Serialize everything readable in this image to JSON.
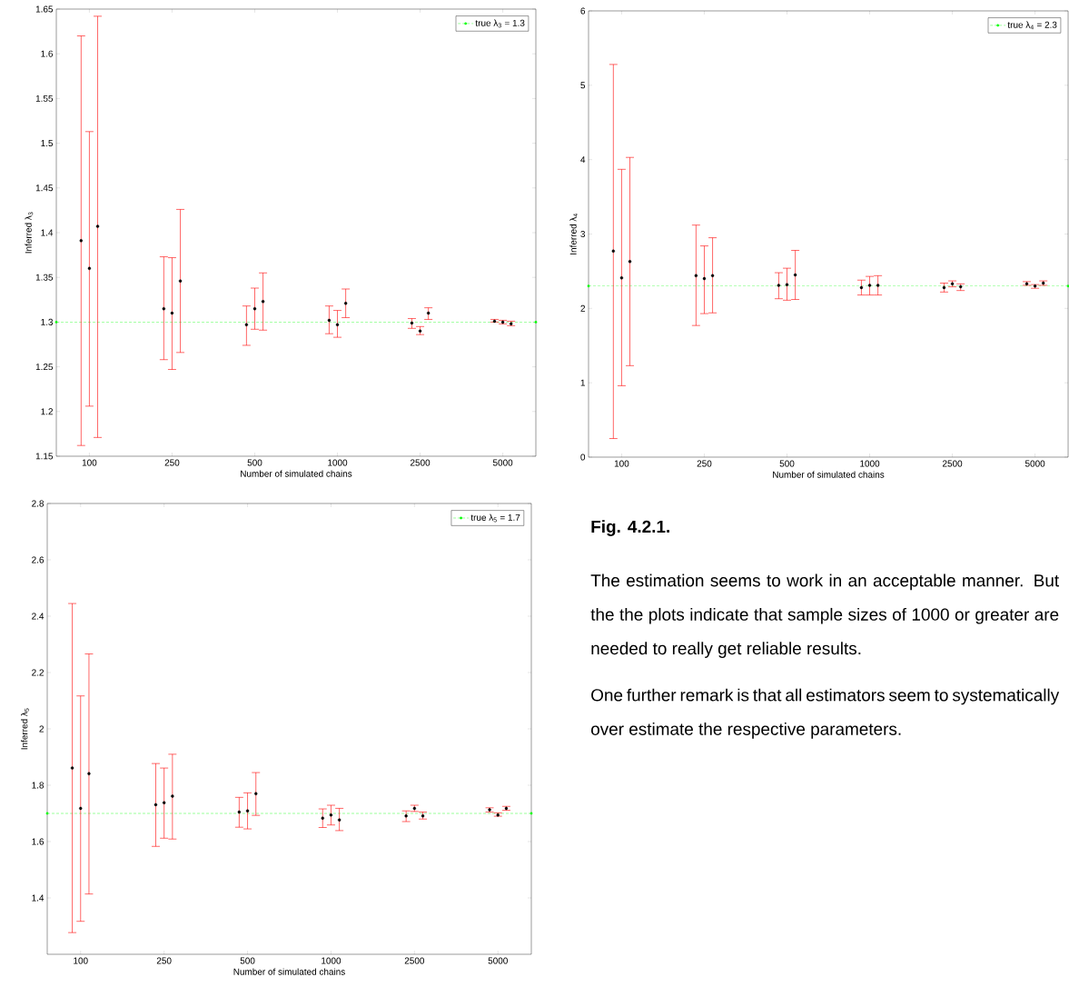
{
  "chart_data": [
    {
      "type": "scatter",
      "xlabel": "Number of simulated chains",
      "ylabel": "Inferred λ$_{3}$",
      "categories": [
        "100",
        "250",
        "500",
        "1000",
        "2500",
        "5000"
      ],
      "ylim": [
        1.15,
        1.65
      ],
      "yticks": [
        1.15,
        1.2,
        1.25,
        1.3,
        1.35,
        1.4,
        1.45,
        1.5,
        1.55,
        1.6,
        1.65
      ],
      "marker": "circle",
      "legend": "top right",
      "ref_lines": [
        {
          "axis": "y",
          "value": 1.3,
          "label": "true λ$_{3}$ = 1.3",
          "color": "#00ff00",
          "line_style": "dashed"
        }
      ],
      "series": [
        {
          "color": "#000000",
          "values": [
            1.391,
            1.315,
            1.297,
            1.302,
            1.299,
            1.301
          ],
          "errors": [
            [
              1.162,
              1.62
            ],
            [
              1.258,
              1.373
            ],
            [
              1.274,
              1.318
            ],
            [
              1.287,
              1.318
            ],
            [
              1.293,
              1.304
            ],
            [
              1.3,
              1.303
            ]
          ]
        },
        {
          "color": "#000000",
          "values": [
            1.36,
            1.31,
            1.315,
            1.297,
            1.29,
            1.3
          ],
          "errors": [
            [
              1.206,
              1.513
            ],
            [
              1.247,
              1.372
            ],
            [
              1.292,
              1.338
            ],
            [
              1.283,
              1.313
            ],
            [
              1.286,
              1.295
            ],
            [
              1.298,
              1.302
            ]
          ]
        },
        {
          "color": "#000000",
          "values": [
            1.407,
            1.346,
            1.323,
            1.321,
            1.31,
            1.298
          ],
          "errors": [
            [
              1.171,
              1.642
            ],
            [
              1.266,
              1.426
            ],
            [
              1.291,
              1.355
            ],
            [
              1.305,
              1.337
            ],
            [
              1.303,
              1.316
            ],
            [
              1.296,
              1.301
            ]
          ]
        }
      ]
    },
    {
      "type": "scatter",
      "xlabel": "Number of simulated chains",
      "ylabel": "Inferred λ$_{4}$",
      "categories": [
        "100",
        "250",
        "500",
        "1000",
        "2500",
        "5000"
      ],
      "ylim": [
        0,
        6
      ],
      "yticks": [
        0,
        1,
        2,
        3,
        4,
        5,
        6
      ],
      "marker": "circle",
      "legend": "top right",
      "ref_lines": [
        {
          "axis": "y",
          "value": 2.3,
          "label": "true λ$_{4}$ = 2.3",
          "color": "#00ff00",
          "line_style": "dashed"
        }
      ],
      "series": [
        {
          "color": "#000000",
          "values": [
            2.77,
            2.44,
            2.31,
            2.28,
            2.28,
            2.33
          ],
          "errors": [
            [
              0.25,
              5.28
            ],
            [
              1.77,
              3.12
            ],
            [
              2.13,
              2.48
            ],
            [
              2.18,
              2.38
            ],
            [
              2.22,
              2.34
            ],
            [
              2.31,
              2.36
            ]
          ]
        },
        {
          "color": "#000000",
          "values": [
            2.41,
            2.4,
            2.32,
            2.31,
            2.33,
            2.3
          ],
          "errors": [
            [
              0.96,
              3.87
            ],
            [
              1.93,
              2.84
            ],
            [
              2.11,
              2.54
            ],
            [
              2.18,
              2.43
            ],
            [
              2.29,
              2.37
            ],
            [
              2.27,
              2.32
            ]
          ]
        },
        {
          "color": "#000000",
          "values": [
            2.63,
            2.44,
            2.45,
            2.31,
            2.29,
            2.34
          ],
          "errors": [
            [
              1.23,
              4.03
            ],
            [
              1.94,
              2.95
            ],
            [
              2.12,
              2.78
            ],
            [
              2.18,
              2.44
            ],
            [
              2.24,
              2.33
            ],
            [
              2.31,
              2.37
            ]
          ]
        }
      ]
    },
    {
      "type": "scatter",
      "xlabel": "Number of simulated chains",
      "ylabel": "Inferred λ$_{5}$",
      "categories": [
        "100",
        "250",
        "500",
        "1000",
        "2500",
        "5000"
      ],
      "ylim": [
        1.2,
        2.8
      ],
      "yticks": [
        1.4,
        1.6,
        1.8,
        2,
        2.2,
        2.4,
        2.6,
        2.8
      ],
      "marker": "circle",
      "legend": "top right",
      "ref_lines": [
        {
          "axis": "y",
          "value": 1.7,
          "label": "true λ$_{5}$ = 1.7",
          "color": "#00ff00",
          "line_style": "dashed"
        }
      ],
      "series": [
        {
          "color": "#000000",
          "values": [
            1.861,
            1.731,
            1.705,
            1.683,
            1.691,
            1.713
          ],
          "errors": [
            [
              1.277,
              2.445
            ],
            [
              1.583,
              1.877
            ],
            [
              1.651,
              1.757
            ],
            [
              1.65,
              1.716
            ],
            [
              1.671,
              1.709
            ],
            [
              1.705,
              1.72
            ]
          ]
        },
        {
          "color": "#000000",
          "values": [
            1.718,
            1.738,
            1.709,
            1.694,
            1.718,
            1.694
          ],
          "errors": [
            [
              1.317,
              2.117
            ],
            [
              1.612,
              1.861
            ],
            [
              1.645,
              1.773
            ],
            [
              1.659,
              1.729
            ],
            [
              1.707,
              1.729
            ],
            [
              1.69,
              1.702
            ]
          ]
        },
        {
          "color": "#000000",
          "values": [
            1.841,
            1.761,
            1.77,
            1.677,
            1.691,
            1.718
          ],
          "errors": [
            [
              1.414,
              2.266
            ],
            [
              1.609,
              1.91
            ],
            [
              1.693,
              1.845
            ],
            [
              1.639,
              1.718
            ],
            [
              1.68,
              1.705
            ],
            [
              1.711,
              1.725
            ]
          ]
        }
      ]
    },
    {
      "type": "other",
      "title": "Fig. 4.2.1.",
      "annotations": [
        "The estimation seems to work in an acceptable manner. But the the plots indicate that sample sizes of 1000 or greater are needed to really get reliable results.",
        "One further remark is that all estimators seem to systematically over estimate the respective parameters."
      ]
    }
  ]
}
